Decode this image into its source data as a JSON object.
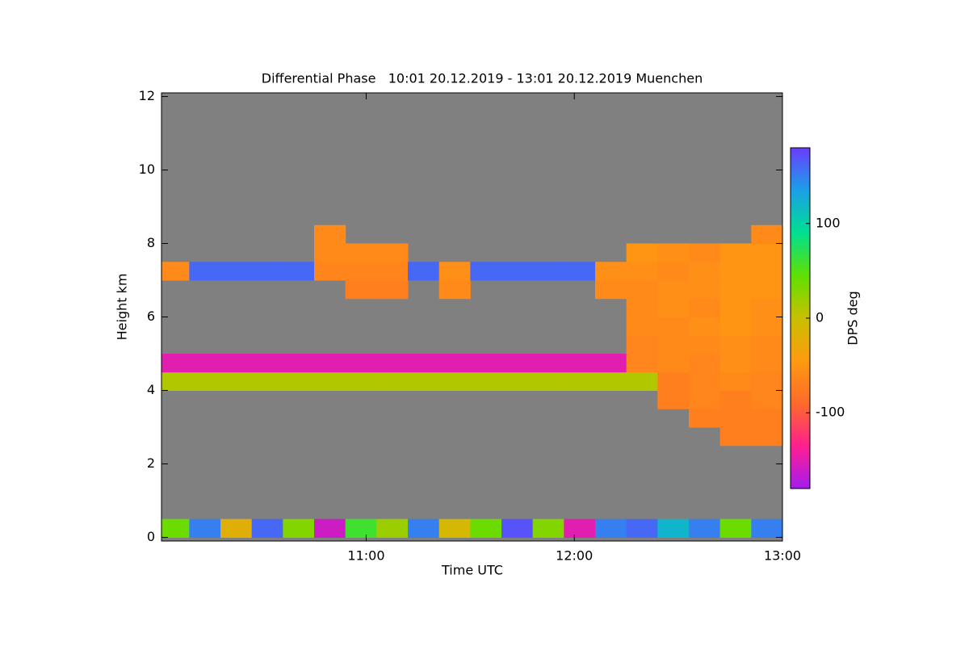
{
  "chart_data": {
    "type": "heatmap",
    "title": "Differential Phase   10:01 20.12.2019 - 13:01 20.12.2019 Muenchen",
    "x_label": "Time UTC",
    "y_label": "Height km",
    "colorbar_label": "DPS deg",
    "xlim": [
      10.0167,
      13.0
    ],
    "xticks": [
      {
        "value": 11,
        "label": "11:00"
      },
      {
        "value": 12,
        "label": "12:00"
      },
      {
        "value": 13,
        "label": "13:00"
      }
    ],
    "ylim": [
      -0.1,
      12.1
    ],
    "yticks": [
      0,
      2,
      4,
      6,
      8,
      10,
      12
    ],
    "clim": [
      -180,
      180
    ],
    "cticks": [
      -100,
      0,
      100
    ],
    "colormap": [
      "#a41cf0",
      "#ff1f8f",
      "#ff6a2a",
      "#ff9a10",
      "#c8c000",
      "#60e000",
      "#00e090",
      "#1aa0e8",
      "#6a3cff"
    ],
    "background": "#808080",
    "x_bins": [
      10.0,
      10.15,
      10.3,
      10.45,
      10.6,
      10.75,
      10.9,
      11.05,
      11.2,
      11.35,
      11.5,
      11.65,
      11.8,
      11.95,
      12.1,
      12.25,
      12.4,
      12.55,
      12.7,
      12.85,
      13.0
    ],
    "y_bins": [
      0,
      0.5,
      1,
      1.5,
      2,
      2.5,
      3,
      3.5,
      4,
      4.5,
      5,
      5.5,
      6,
      6.5,
      7,
      7.5,
      8,
      8.5,
      9,
      9.5,
      10,
      10.5,
      11,
      11.5,
      12
    ],
    "z": [
      [
        40,
        150,
        -20,
        160,
        30,
        -160,
        60,
        20,
        150,
        -10,
        40,
        170,
        30,
        -150,
        150,
        160,
        120,
        150,
        40,
        150
      ],
      [
        null,
        null,
        null,
        null,
        null,
        null,
        null,
        null,
        null,
        null,
        null,
        null,
        null,
        null,
        null,
        null,
        null,
        null,
        null,
        null
      ],
      [
        null,
        null,
        null,
        null,
        null,
        null,
        null,
        null,
        null,
        null,
        null,
        null,
        null,
        null,
        null,
        null,
        null,
        null,
        null,
        null
      ],
      [
        null,
        null,
        null,
        null,
        null,
        null,
        null,
        null,
        null,
        null,
        null,
        null,
        null,
        null,
        null,
        null,
        null,
        null,
        null,
        null
      ],
      [
        null,
        null,
        null,
        null,
        null,
        null,
        null,
        null,
        null,
        null,
        null,
        null,
        null,
        null,
        null,
        null,
        null,
        null,
        null,
        null
      ],
      [
        null,
        null,
        null,
        null,
        null,
        null,
        null,
        null,
        null,
        null,
        null,
        null,
        null,
        null,
        null,
        null,
        null,
        null,
        -70,
        -70
      ],
      [
        null,
        null,
        null,
        null,
        null,
        null,
        null,
        null,
        null,
        null,
        null,
        null,
        null,
        null,
        null,
        null,
        null,
        -70,
        -70,
        -70
      ],
      [
        null,
        null,
        null,
        null,
        null,
        null,
        null,
        null,
        null,
        null,
        null,
        null,
        null,
        null,
        null,
        null,
        -70,
        -65,
        -70,
        -65
      ],
      [
        10,
        10,
        10,
        10,
        10,
        10,
        10,
        10,
        10,
        10,
        10,
        10,
        10,
        10,
        10,
        10,
        -70,
        -65,
        -60,
        -65
      ],
      [
        -150,
        -150,
        -150,
        -150,
        -150,
        -150,
        -150,
        -150,
        -150,
        -150,
        -150,
        -150,
        -150,
        -150,
        -150,
        -65,
        -60,
        -65,
        -55,
        -60
      ],
      [
        null,
        null,
        null,
        null,
        null,
        null,
        null,
        null,
        null,
        null,
        null,
        null,
        null,
        null,
        null,
        -65,
        -60,
        -60,
        -55,
        -60
      ],
      [
        null,
        null,
        null,
        null,
        null,
        null,
        null,
        null,
        null,
        null,
        null,
        null,
        null,
        null,
        null,
        -60,
        -60,
        -55,
        -50,
        -55
      ],
      [
        null,
        null,
        null,
        null,
        null,
        null,
        null,
        null,
        null,
        null,
        null,
        null,
        null,
        null,
        null,
        -60,
        -55,
        -60,
        -50,
        -55
      ],
      [
        null,
        null,
        null,
        null,
        null,
        null,
        -70,
        -70,
        null,
        -60,
        null,
        null,
        null,
        null,
        -60,
        -60,
        -55,
        -55,
        -50,
        -50
      ],
      [
        -60,
        160,
        160,
        160,
        160,
        -65,
        -65,
        -65,
        160,
        -55,
        160,
        160,
        160,
        160,
        -55,
        -55,
        -60,
        -55,
        -50,
        -50
      ],
      [
        null,
        null,
        null,
        null,
        null,
        -60,
        -60,
        -60,
        null,
        null,
        null,
        null,
        null,
        null,
        null,
        -50,
        -55,
        -60,
        -50,
        -50
      ],
      [
        null,
        null,
        null,
        null,
        null,
        -60,
        null,
        null,
        null,
        null,
        null,
        null,
        null,
        null,
        null,
        null,
        null,
        null,
        null,
        -60
      ],
      [
        null,
        null,
        null,
        null,
        null,
        null,
        null,
        null,
        null,
        null,
        null,
        null,
        null,
        null,
        null,
        null,
        null,
        null,
        null,
        null
      ],
      [
        null,
        null,
        null,
        null,
        null,
        null,
        null,
        null,
        null,
        null,
        null,
        null,
        null,
        null,
        null,
        null,
        null,
        null,
        null,
        null
      ],
      [
        null,
        null,
        null,
        null,
        null,
        null,
        null,
        null,
        null,
        null,
        null,
        null,
        null,
        null,
        null,
        null,
        null,
        null,
        null,
        null
      ],
      [
        null,
        null,
        null,
        null,
        null,
        null,
        null,
        null,
        null,
        null,
        null,
        null,
        null,
        null,
        null,
        null,
        null,
        null,
        null,
        null
      ],
      [
        null,
        null,
        null,
        null,
        null,
        null,
        null,
        null,
        null,
        null,
        null,
        null,
        null,
        null,
        null,
        null,
        null,
        null,
        null,
        null
      ],
      [
        null,
        null,
        null,
        null,
        null,
        null,
        null,
        null,
        null,
        null,
        null,
        null,
        null,
        null,
        null,
        null,
        null,
        null,
        null,
        null
      ],
      [
        null,
        null,
        null,
        null,
        null,
        null,
        null,
        null,
        null,
        null,
        null,
        null,
        null,
        null,
        null,
        null,
        null,
        null,
        null,
        null
      ]
    ]
  }
}
